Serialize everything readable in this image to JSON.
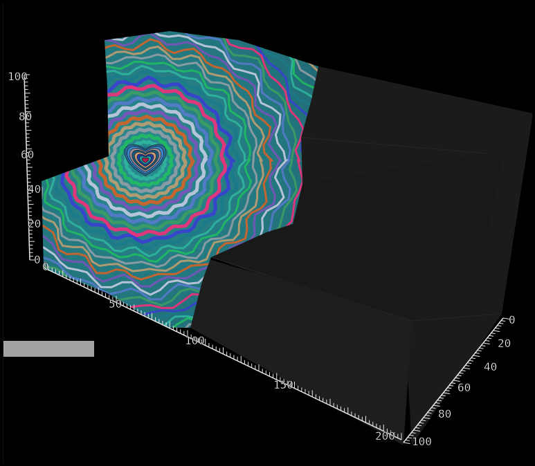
{
  "scene": {
    "background": "#000000",
    "box_face_color": "#1b1b1b",
    "axis_color": "#e8e8e8",
    "palette": [
      "#ff2a7a",
      "#3b3bd6",
      "#1a7a8a",
      "#2fb8a0",
      "#20c060",
      "#9aa0a8",
      "#c8a070",
      "#e06020",
      "#8050c0",
      "#d0d0e8",
      "#5a7ad0",
      "#40a060"
    ]
  },
  "axes": {
    "z_ticks": [
      "0",
      "20",
      "40",
      "60",
      "80",
      "100"
    ],
    "x_ticks": [
      "0",
      "50",
      "100",
      "150",
      "200"
    ],
    "y_ticks": [
      "0",
      "20",
      "40",
      "60",
      "80",
      "100"
    ]
  },
  "overlay": {
    "color": "#a3a3a3"
  }
}
